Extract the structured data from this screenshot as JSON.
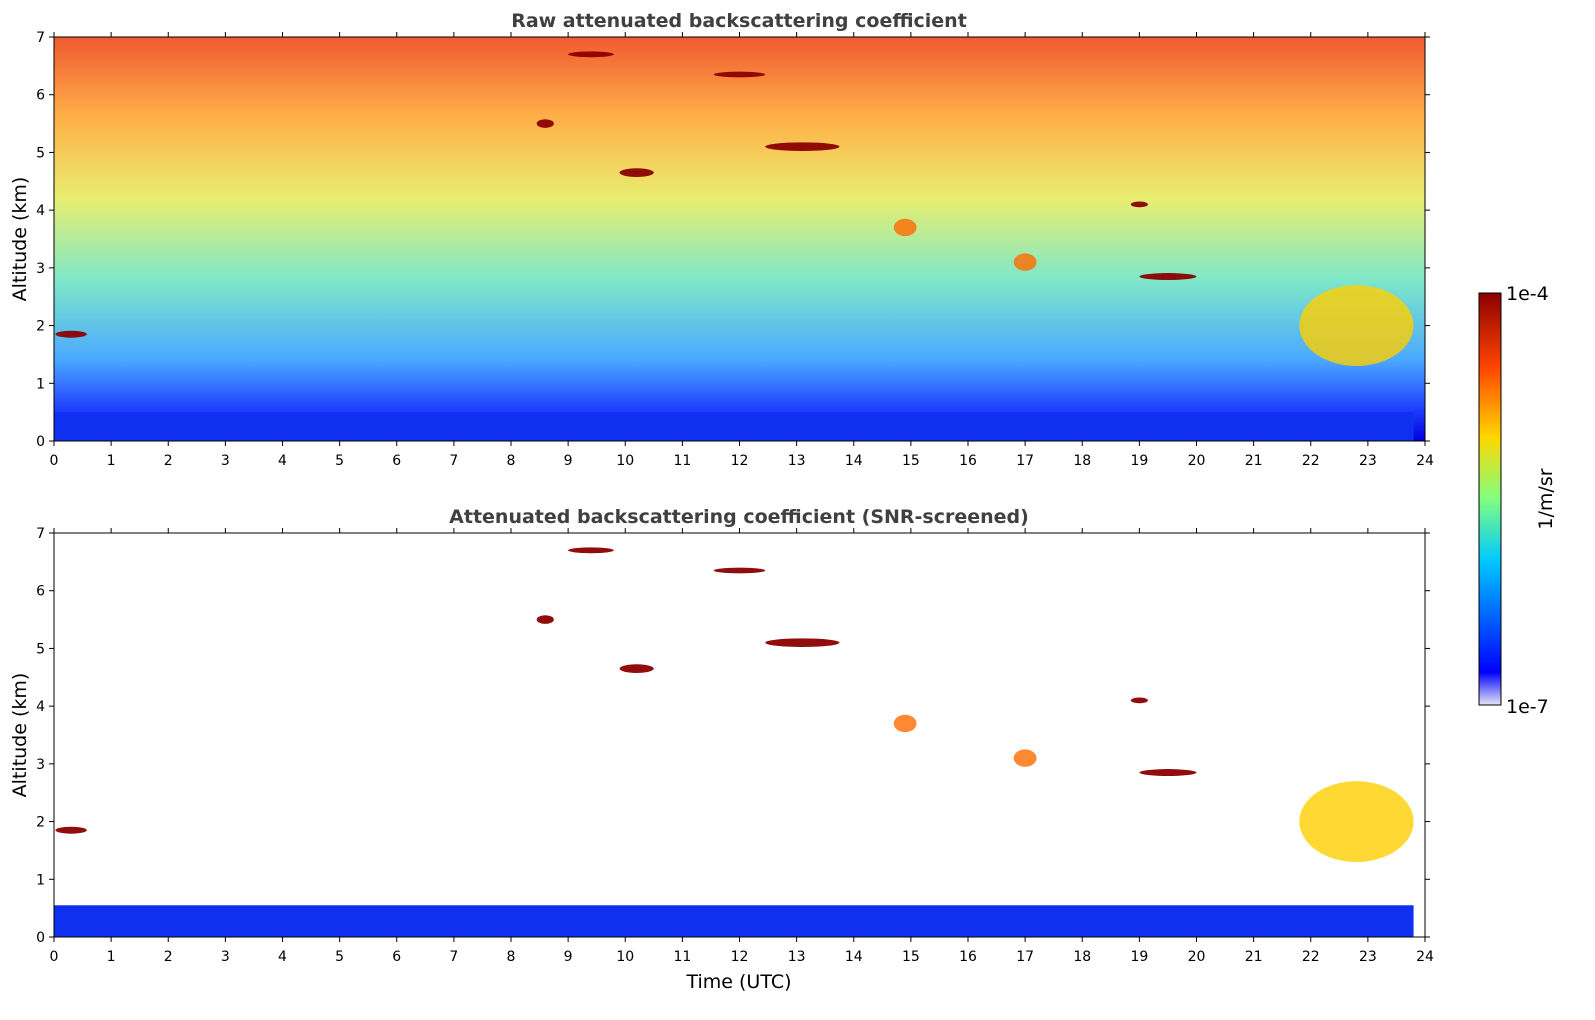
{
  "chart_data": [
    {
      "type": "heatmap",
      "title": "Raw attenuated backscattering coefficient",
      "xlabel": "",
      "ylabel": "Altitude (km)",
      "xlim": [
        0,
        24
      ],
      "ylim": [
        0,
        7
      ],
      "xticks": [
        "0",
        "1",
        "2",
        "3",
        "4",
        "5",
        "6",
        "7",
        "8",
        "9",
        "10",
        "11",
        "12",
        "13",
        "14",
        "15",
        "16",
        "17",
        "18",
        "19",
        "20",
        "21",
        "22",
        "23",
        "24"
      ],
      "yticks": [
        "0",
        "1",
        "2",
        "3",
        "4",
        "5",
        "6",
        "7"
      ],
      "features": [
        {
          "t": 0.3,
          "z": 1.85,
          "dt": 0.55,
          "dz": 0.12,
          "level": 1.0
        },
        {
          "t": 8.6,
          "z": 5.5,
          "dt": 0.3,
          "dz": 0.15,
          "level": 1.0
        },
        {
          "t": 9.4,
          "z": 6.7,
          "dt": 0.8,
          "dz": 0.1,
          "level": 1.0
        },
        {
          "t": 10.2,
          "z": 4.65,
          "dt": 0.6,
          "dz": 0.15,
          "level": 1.0
        },
        {
          "t": 12.0,
          "z": 6.35,
          "dt": 0.9,
          "dz": 0.1,
          "level": 1.0
        },
        {
          "t": 13.1,
          "z": 5.1,
          "dt": 1.3,
          "dz": 0.15,
          "level": 1.0
        },
        {
          "t": 19.0,
          "z": 4.1,
          "dt": 0.3,
          "dz": 0.1,
          "level": 1.0
        },
        {
          "t": 19.5,
          "z": 2.85,
          "dt": 1.0,
          "dz": 0.12,
          "level": 1.0
        },
        {
          "t": 14.9,
          "z": 3.7,
          "dt": 0.4,
          "dz": 0.3,
          "level": 0.75
        },
        {
          "t": 17.0,
          "z": 3.1,
          "dt": 0.4,
          "dz": 0.3,
          "level": 0.75
        },
        {
          "t": 22.8,
          "z": 2.0,
          "dt": 2.0,
          "dz": 1.4,
          "level": 0.55
        }
      ],
      "surface_layer_top_km": 0.5
    },
    {
      "type": "heatmap",
      "title": "Attenuated backscattering coefficient (SNR-screened)",
      "xlabel": "Time (UTC)",
      "ylabel": "Altitude (km)",
      "xlim": [
        0,
        24
      ],
      "ylim": [
        0,
        7
      ],
      "xticks": [
        "0",
        "1",
        "2",
        "3",
        "4",
        "5",
        "6",
        "7",
        "8",
        "9",
        "10",
        "11",
        "12",
        "13",
        "14",
        "15",
        "16",
        "17",
        "18",
        "19",
        "20",
        "21",
        "22",
        "23",
        "24"
      ],
      "yticks": [
        "0",
        "1",
        "2",
        "3",
        "4",
        "5",
        "6",
        "7"
      ],
      "features": [
        {
          "t": 0.3,
          "z": 1.85,
          "dt": 0.55,
          "dz": 0.12,
          "level": 1.0
        },
        {
          "t": 8.6,
          "z": 5.5,
          "dt": 0.3,
          "dz": 0.15,
          "level": 1.0
        },
        {
          "t": 9.4,
          "z": 6.7,
          "dt": 0.8,
          "dz": 0.1,
          "level": 1.0
        },
        {
          "t": 10.2,
          "z": 4.65,
          "dt": 0.6,
          "dz": 0.15,
          "level": 1.0
        },
        {
          "t": 12.0,
          "z": 6.35,
          "dt": 0.9,
          "dz": 0.1,
          "level": 1.0
        },
        {
          "t": 13.1,
          "z": 5.1,
          "dt": 1.3,
          "dz": 0.15,
          "level": 1.0
        },
        {
          "t": 19.0,
          "z": 4.1,
          "dt": 0.3,
          "dz": 0.1,
          "level": 1.0
        },
        {
          "t": 19.5,
          "z": 2.85,
          "dt": 1.0,
          "dz": 0.12,
          "level": 1.0
        },
        {
          "t": 14.9,
          "z": 3.7,
          "dt": 0.4,
          "dz": 0.3,
          "level": 0.75
        },
        {
          "t": 17.0,
          "z": 3.1,
          "dt": 0.4,
          "dz": 0.3,
          "level": 0.75
        },
        {
          "t": 22.8,
          "z": 2.0,
          "dt": 2.0,
          "dz": 1.4,
          "level": 0.55
        }
      ],
      "surface_layer_top_km": 0.55
    }
  ],
  "colorbar": {
    "label": "1/m/sr",
    "max_label": "1e-4",
    "min_label": "1e-7",
    "colormap": "jet",
    "colors": [
      "#e6e6f5",
      "#0000ff",
      "#00c8ff",
      "#80ff80",
      "#ffd700",
      "#ff4500",
      "#8b0000"
    ]
  }
}
